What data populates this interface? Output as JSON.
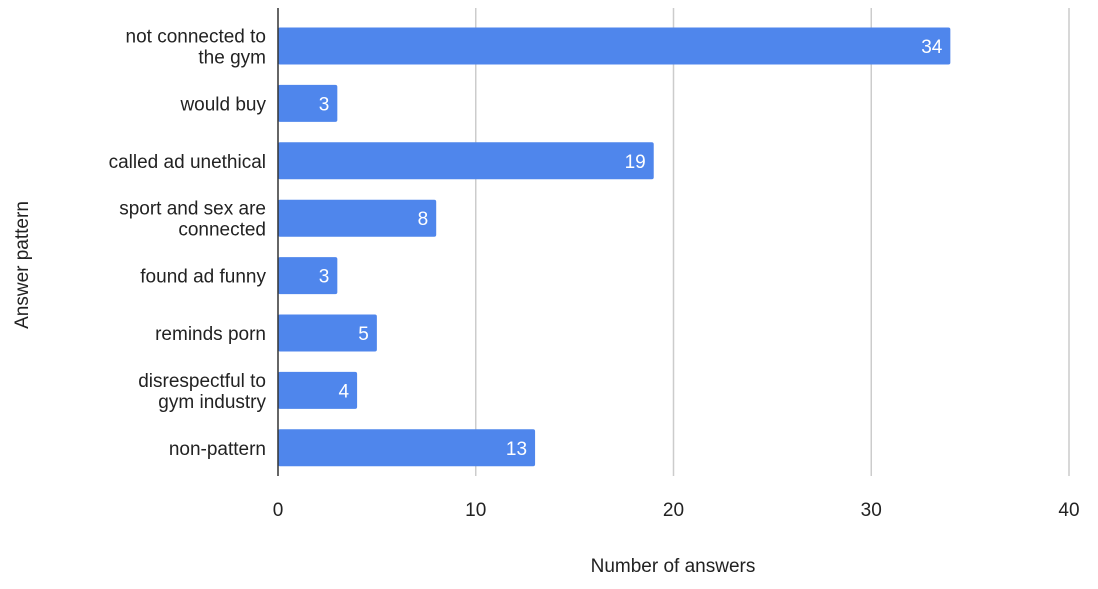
{
  "chart_data": {
    "type": "bar",
    "orientation": "horizontal",
    "title": "",
    "xlabel": "Number of answers",
    "ylabel": "Answer pattern",
    "categories": [
      [
        "not connected to",
        "the gym"
      ],
      [
        "would buy"
      ],
      [
        "called ad unethical"
      ],
      [
        "sport and sex are",
        "connected"
      ],
      [
        "found ad funny"
      ],
      [
        "reminds porn"
      ],
      [
        "disrespectful to",
        "gym industry"
      ],
      [
        "non-pattern"
      ]
    ],
    "values": [
      34,
      3,
      19,
      8,
      3,
      5,
      4,
      13
    ],
    "xlim": [
      0,
      40
    ],
    "xticks": [
      0,
      10,
      20,
      30,
      40
    ],
    "grid": "vertical",
    "legend": "none",
    "data_labels": "inside-end",
    "colors": {
      "bar": "#4f86ec",
      "grid": "#cccccc",
      "axis": "#333333",
      "text": "#222222",
      "data_label": "#ffffff"
    }
  }
}
